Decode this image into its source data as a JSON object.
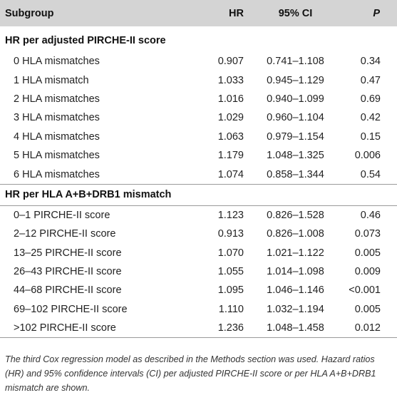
{
  "header": {
    "subgroup": "Subgroup",
    "hr": "HR",
    "ci": "95% CI",
    "p": "P"
  },
  "sections": [
    {
      "title": "HR per adjusted PIRCHE-II score",
      "rows": [
        {
          "subgroup": "0 HLA mismatches",
          "hr": "0.907",
          "ci": "0.741–1.108",
          "p": "0.34"
        },
        {
          "subgroup": "1 HLA mismatch",
          "hr": "1.033",
          "ci": "0.945–1.129",
          "p": "0.47"
        },
        {
          "subgroup": "2 HLA mismatches",
          "hr": "1.016",
          "ci": "0.940–1.099",
          "p": "0.69"
        },
        {
          "subgroup": "3 HLA mismatches",
          "hr": "1.029",
          "ci": "0.960–1.104",
          "p": "0.42"
        },
        {
          "subgroup": "4 HLA mismatches",
          "hr": "1.063",
          "ci": "0.979–1.154",
          "p": "0.15"
        },
        {
          "subgroup": "5 HLA mismatches",
          "hr": "1.179",
          "ci": "1.048–1.325",
          "p": "0.006"
        },
        {
          "subgroup": "6 HLA mismatches",
          "hr": "1.074",
          "ci": "0.858–1.344",
          "p": "0.54"
        }
      ]
    },
    {
      "title": "HR per HLA A+B+DRB1 mismatch",
      "rows": [
        {
          "subgroup": "0–1 PIRCHE-II score",
          "hr": "1.123",
          "ci": "0.826–1.528",
          "p": "0.46"
        },
        {
          "subgroup": "2–12 PIRCHE-II score",
          "hr": "0.913",
          "ci": "0.826–1.008",
          "p": "0.073"
        },
        {
          "subgroup": "13–25 PIRCHE-II score",
          "hr": "1.070",
          "ci": "1.021–1.122",
          "p": "0.005"
        },
        {
          "subgroup": "26–43 PIRCHE-II score",
          "hr": "1.055",
          "ci": "1.014–1.098",
          "p": "0.009"
        },
        {
          "subgroup": "44–68 PIRCHE-II score",
          "hr": "1.095",
          "ci": "1.046–1.146",
          "p": "<0.001"
        },
        {
          "subgroup": "69–102 PIRCHE-II score",
          "hr": "1.110",
          "ci": "1.032–1.194",
          "p": "0.005"
        },
        {
          "subgroup": ">102 PIRCHE-II score",
          "hr": "1.236",
          "ci": "1.048–1.458",
          "p": "0.012"
        }
      ]
    }
  ],
  "caption": "The third Cox regression model as described in the Methods section was used. Hazard ratios (HR) and 95% confidence intervals (CI) per adjusted PIRCHE-II score or per HLA A+B+DRB1 mismatch are shown."
}
